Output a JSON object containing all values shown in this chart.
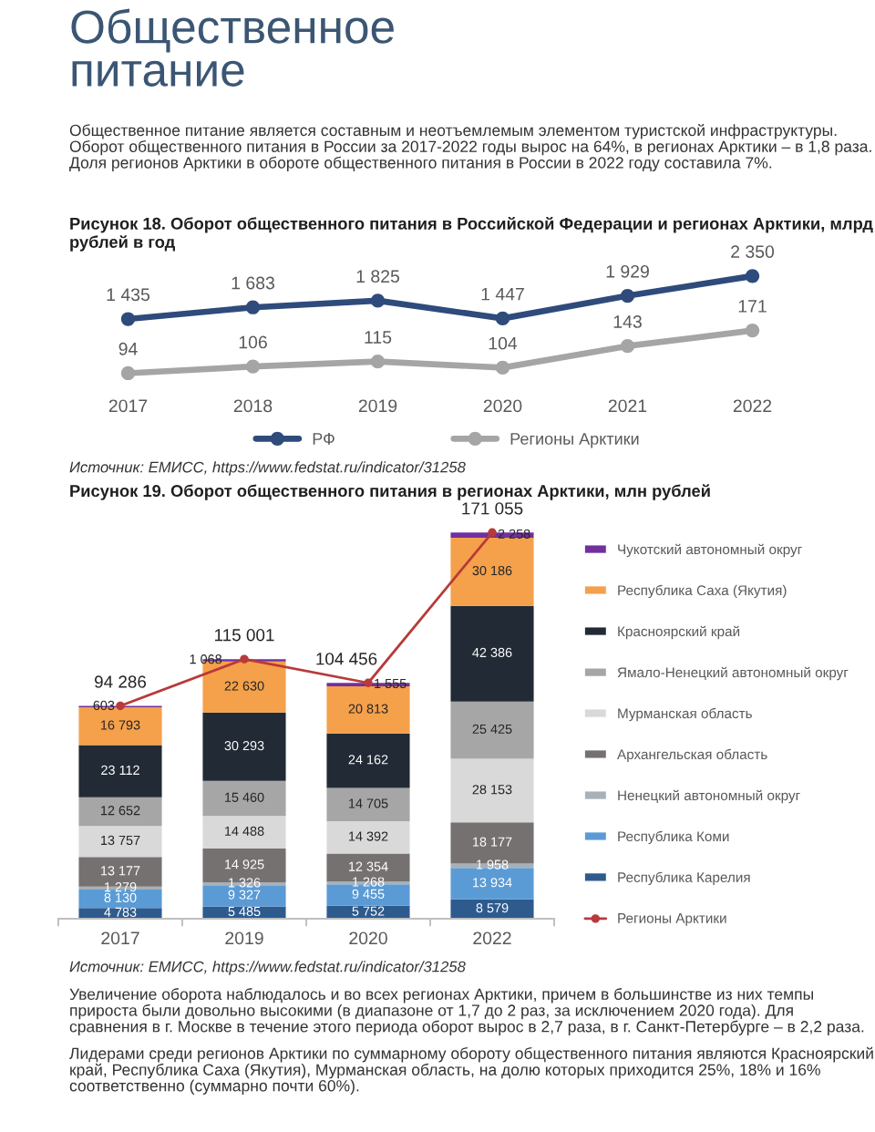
{
  "chart_data": [
    {
      "type": "line",
      "title": "Рисунок 18. Оборот общественного питания в Российской Федерации и регионах Арктики, млрд рублей в год",
      "annotations": [
        "Общественное\nпитание",
        "Общественное питание является составным и неотъемлемым элементом туристской инфраструктуры. Оборот общественного питания в России за 2017-2022 годы вырос на 64%, в регионах Арктики – в 1,8 раза. Доля регионов Арктики в обороте общественного питания в России в 2022 году составила 7%.",
        "Источник: ЕМИСС, https://www.fedstat.ru/indicator/31258"
      ],
      "categories": [
        "2017",
        "2018",
        "2019",
        "2020",
        "2021",
        "2022"
      ],
      "series": [
        {
          "name": "РФ",
          "color": "#2f4b7c",
          "values": [
            1435,
            1683,
            1825,
            1447,
            1929,
            2350
          ],
          "value_labels": [
            "1 435",
            "1 683",
            "1 825",
            "1 447",
            "1 929",
            "2 350"
          ]
        }
      ],
      "tick_labels": "x",
      "marker": "circle",
      "line_style": "solid",
      "legend": "bottom"
    },
    {
      "type": "line",
      "categories": [
        "2017",
        "2018",
        "2019",
        "2020",
        "2021",
        "2022"
      ],
      "series": [
        {
          "name": "Регионы Арктики",
          "color": "#a5a5a5",
          "values": [
            94,
            106,
            115,
            104,
            143,
            171
          ],
          "value_labels": [
            "94",
            "106",
            "115",
            "104",
            "143",
            "171"
          ]
        }
      ],
      "tick_labels": false,
      "marker": "circle",
      "line_style": "solid",
      "legend": "bottom"
    },
    {
      "type": "bar",
      "stacked": true,
      "title": "Рисунок 19. Оборот общественного питания в регионах Арктики, млн рублей",
      "annotations": [
        "Источник: ЕМИСС, https://www.fedstat.ru/indicator/31258",
        "Увеличение оборота наблюдалось и во всех регионах Арктики, причем в большинстве из них темпы прироста были довольно высокими (в диапазоне от 1,7 до 2 раз, за исключением 2020 года). Для сравнения в г. Москве в течение этого периода оборот вырос в 2,7 раза, в г. Санкт-Петербурге – в 2,2 раза.",
        "Лидерами среди регионов Арктики по суммарному обороту общественного питания являются Красноярский край, Республика Саха (Якутия), Мурманская область, на долю которых приходится 25%, 18% и 16% соответственно (суммарно почти 60%)."
      ],
      "categories": [
        "2017",
        "2019",
        "2020",
        "2022"
      ],
      "series": [
        {
          "name": "Республика Карелия",
          "color": "#2e5b8e",
          "values": [
            4783,
            5485,
            5752,
            8579
          ],
          "value_labels": [
            "4 783",
            "5 485",
            "5 752",
            "8 579"
          ]
        },
        {
          "name": "Республика Коми",
          "color": "#5b9bd5",
          "values": [
            8130,
            9327,
            9455,
            13934
          ],
          "value_labels": [
            "8 130",
            "9 327",
            "9 455",
            "13 934"
          ]
        },
        {
          "name": "Ненецкий автономный округ",
          "color": "#a9b0b8",
          "values": [
            1279,
            1326,
            1268,
            1958
          ],
          "value_labels": [
            "1 279",
            "1 326",
            "1 268",
            "1 958"
          ]
        },
        {
          "name": "Архангельская область",
          "color": "#767171",
          "values": [
            13177,
            14925,
            12354,
            18177
          ],
          "value_labels": [
            "13 177",
            "14 925",
            "12 354",
            "18 177"
          ]
        },
        {
          "name": "Мурманская область",
          "color": "#d9d9d9",
          "values": [
            13757,
            14488,
            14392,
            28153
          ],
          "value_labels": [
            "13 757",
            "14 488",
            "14 392",
            "28 153"
          ]
        },
        {
          "name": "Ямало-Ненецкий автономный округ",
          "color": "#a6a6a6",
          "values": [
            12652,
            15460,
            14705,
            25425
          ],
          "value_labels": [
            "12 652",
            "15 460",
            "14 705",
            "25 425"
          ]
        },
        {
          "name": "Красноярский край",
          "color": "#222a35",
          "values": [
            23112,
            30293,
            24162,
            42386
          ],
          "value_labels": [
            "23 112",
            "30 293",
            "24 162",
            "42 386"
          ]
        },
        {
          "name": "Республика Саха (Якутия)",
          "color": "#f5a04b",
          "values": [
            16793,
            22630,
            20813,
            30186
          ],
          "value_labels": [
            "16 793",
            "22 630",
            "20 813",
            "30 186"
          ]
        },
        {
          "name": "Чукотский автономный округ",
          "color": "#7030a0",
          "values": [
            603,
            1068,
            1555,
            2258
          ],
          "value_labels": [
            "603",
            "1 068",
            "1 555",
            "2 258"
          ]
        },
        {
          "name": "Регионы Арктики",
          "type": "line",
          "color": "#b83a3a",
          "values": [
            94286,
            115001,
            104456,
            171055
          ],
          "value_labels": [
            "94 286",
            "115 001",
            "104 456",
            "171 055"
          ]
        }
      ],
      "tick_labels": "x",
      "marker": "circle",
      "line_style": "solid",
      "legend": "right"
    }
  ]
}
